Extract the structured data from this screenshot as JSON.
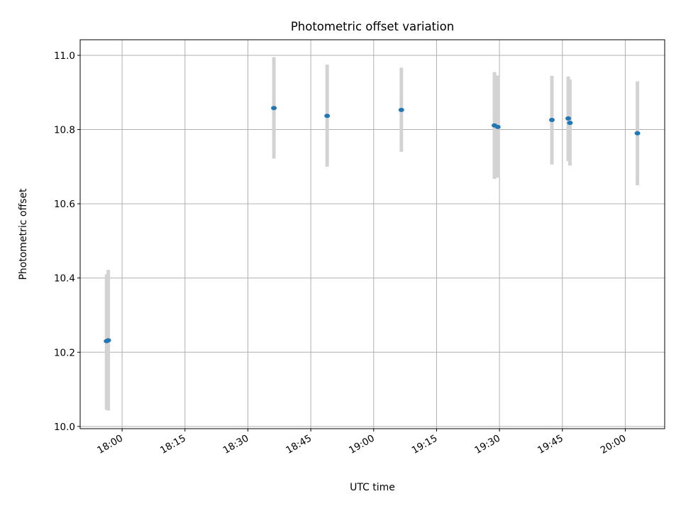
{
  "chart_data": {
    "type": "scatter",
    "title": "Photometric offset variation",
    "xlabel": "UTC time",
    "ylabel": "Photometric offset",
    "xlim_minutes_after_1800": [
      -10.0,
      129.4
    ],
    "ylim": [
      9.994,
      11.042
    ],
    "grid": true,
    "x_ticks": [
      "18:00",
      "18:15",
      "18:30",
      "18:45",
      "19:00",
      "19:15",
      "19:30",
      "19:45",
      "20:00"
    ],
    "x_tick_minutes": [
      0,
      15,
      30,
      45,
      60,
      75,
      90,
      105,
      120
    ],
    "y_ticks": [
      10.0,
      10.2,
      10.4,
      10.6,
      10.8,
      11.0
    ],
    "y_tick_labels": [
      "10.0",
      "10.2",
      "10.4",
      "10.6",
      "10.8",
      "11.0"
    ],
    "points": [
      {
        "time": "17:56:20",
        "minutes": -3.7,
        "y": 10.23,
        "err_low": 10.045,
        "err_high": 10.41
      },
      {
        "time": "17:56:40",
        "minutes": -3.3,
        "y": 10.232,
        "err_low": 10.043,
        "err_high": 10.422
      },
      {
        "time": "18:36:10",
        "minutes": 36.2,
        "y": 10.858,
        "err_low": 10.722,
        "err_high": 10.995
      },
      {
        "time": "18:48:55",
        "minutes": 48.9,
        "y": 10.837,
        "err_low": 10.7,
        "err_high": 10.975
      },
      {
        "time": "19:06:35",
        "minutes": 66.6,
        "y": 10.853,
        "err_low": 10.74,
        "err_high": 10.967
      },
      {
        "time": "19:28:50",
        "minutes": 88.8,
        "y": 10.811,
        "err_low": 10.667,
        "err_high": 10.955
      },
      {
        "time": "19:29:35",
        "minutes": 89.6,
        "y": 10.807,
        "err_low": 10.67,
        "err_high": 10.946
      },
      {
        "time": "19:42:30",
        "minutes": 102.5,
        "y": 10.826,
        "err_low": 10.706,
        "err_high": 10.945
      },
      {
        "time": "19:46:25",
        "minutes": 106.4,
        "y": 10.83,
        "err_low": 10.715,
        "err_high": 10.943
      },
      {
        "time": "19:46:45",
        "minutes": 106.8,
        "y": 10.818,
        "err_low": 10.703,
        "err_high": 10.935
      },
      {
        "time": "20:02:55",
        "minutes": 122.9,
        "y": 10.79,
        "err_low": 10.65,
        "err_high": 10.93
      }
    ],
    "colors": {
      "point": "#1f77b4",
      "errorbar": "#d3d3d3"
    }
  }
}
